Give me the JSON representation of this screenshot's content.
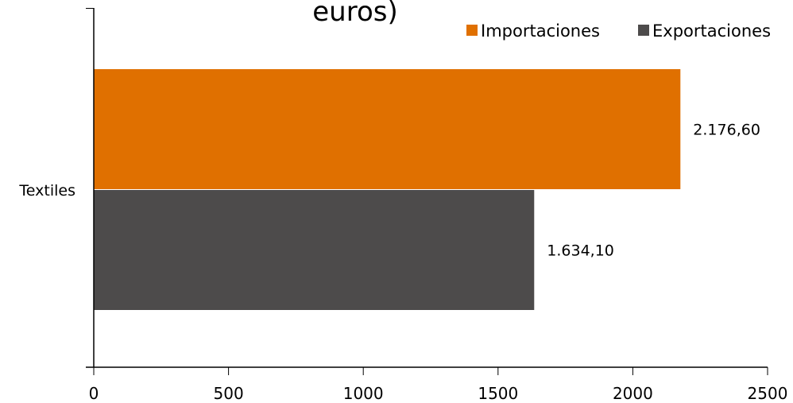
{
  "chart_data": {
    "type": "bar",
    "orientation": "horizontal",
    "title": "euros)",
    "categories": [
      "Textiles"
    ],
    "series": [
      {
        "name": "Importaciones",
        "color": "#E07000",
        "values": [
          2176.6
        ],
        "label": "2.176,60"
      },
      {
        "name": "Exportaciones",
        "color": "#4D4B4B",
        "values": [
          1634.1
        ],
        "label": "1.634,10"
      }
    ],
    "xlim": [
      0,
      2500
    ],
    "xticks": [
      "0",
      "500",
      "1000",
      "1500",
      "2000",
      "2500"
    ],
    "xlabel": "",
    "ylabel": "",
    "grid": false,
    "legend_position": "top-right"
  }
}
